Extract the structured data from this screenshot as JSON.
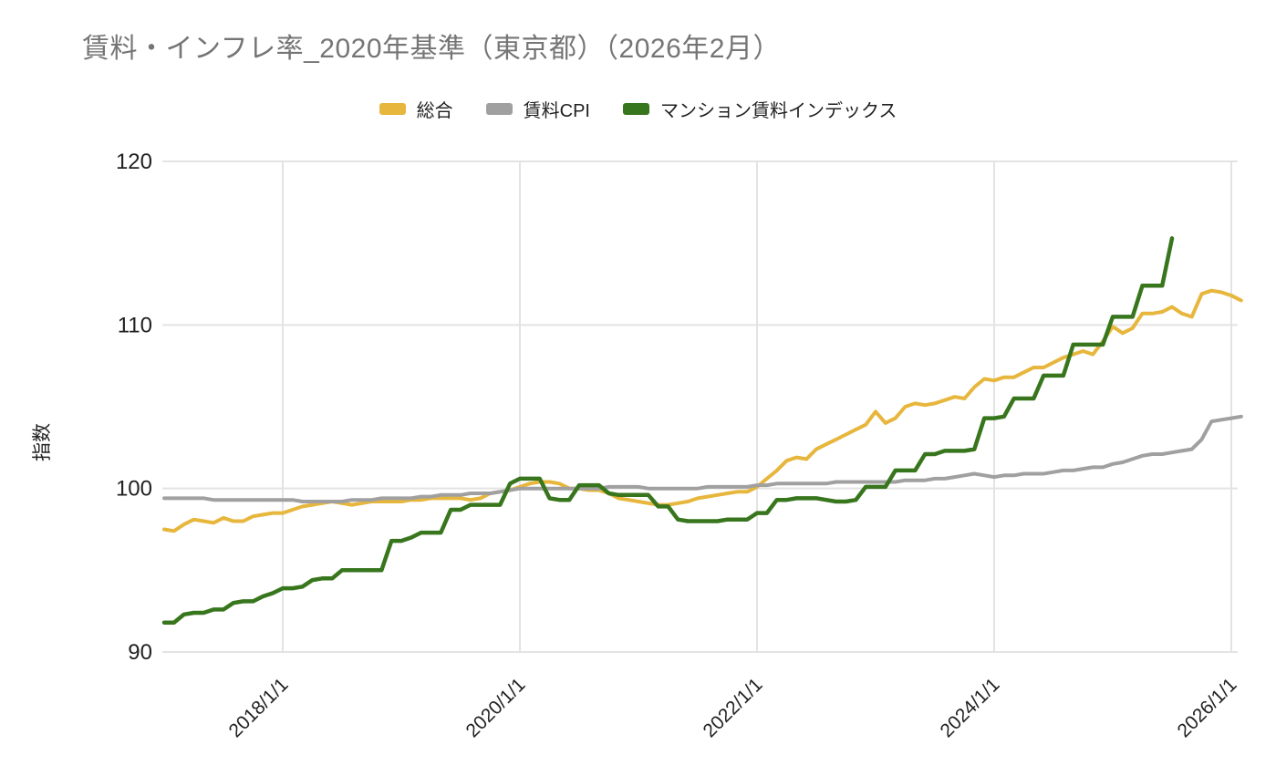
{
  "title": "賃料・インフレ率_2020年基準（東京都）（2026年2月）",
  "colors": {
    "series_sougou": "#E7B63C",
    "series_chinryo_cpi": "#A0A0A0",
    "series_mansion_index": "#38761D",
    "grid": "#E3E3E3",
    "title_text": "#757575",
    "axis_text": "#212121"
  },
  "chart_data": {
    "type": "line",
    "title": "賃料・インフレ率_2020年基準（東京都）（2026年2月）",
    "ylabel": "指数",
    "xlabel": "",
    "ylim": [
      90,
      120
    ],
    "y_ticks": [
      90,
      100,
      110,
      120
    ],
    "x_tick_labels": [
      "2018/1/1",
      "2020/1/1",
      "2022/1/1",
      "2024/1/1",
      "2026/1/1"
    ],
    "x_tick_indices": [
      12,
      36,
      60,
      84,
      108
    ],
    "grid": true,
    "legend_position": "top",
    "x": [
      "2017/1",
      "2017/2",
      "2017/3",
      "2017/4",
      "2017/5",
      "2017/6",
      "2017/7",
      "2017/8",
      "2017/9",
      "2017/10",
      "2017/11",
      "2017/12",
      "2018/1",
      "2018/2",
      "2018/3",
      "2018/4",
      "2018/5",
      "2018/6",
      "2018/7",
      "2018/8",
      "2018/9",
      "2018/10",
      "2018/11",
      "2018/12",
      "2019/1",
      "2019/2",
      "2019/3",
      "2019/4",
      "2019/5",
      "2019/6",
      "2019/7",
      "2019/8",
      "2019/9",
      "2019/10",
      "2019/11",
      "2019/12",
      "2020/1",
      "2020/2",
      "2020/3",
      "2020/4",
      "2020/5",
      "2020/6",
      "2020/7",
      "2020/8",
      "2020/9",
      "2020/10",
      "2020/11",
      "2020/12",
      "2021/1",
      "2021/2",
      "2021/3",
      "2021/4",
      "2021/5",
      "2021/6",
      "2021/7",
      "2021/8",
      "2021/9",
      "2021/10",
      "2021/11",
      "2021/12",
      "2022/1",
      "2022/2",
      "2022/3",
      "2022/4",
      "2022/5",
      "2022/6",
      "2022/7",
      "2022/8",
      "2022/9",
      "2022/10",
      "2022/11",
      "2022/12",
      "2023/1",
      "2023/2",
      "2023/3",
      "2023/4",
      "2023/5",
      "2023/6",
      "2023/7",
      "2023/8",
      "2023/9",
      "2023/10",
      "2023/11",
      "2023/12",
      "2024/1",
      "2024/2",
      "2024/3",
      "2024/4",
      "2024/5",
      "2024/6",
      "2024/7",
      "2024/8",
      "2024/9",
      "2024/10",
      "2024/11",
      "2024/12",
      "2025/1",
      "2025/2",
      "2025/3",
      "2025/4",
      "2025/5",
      "2025/6",
      "2025/7",
      "2025/8",
      "2025/9",
      "2025/10",
      "2025/11",
      "2025/12",
      "2026/1",
      "2026/2"
    ],
    "series": [
      {
        "name": "総合",
        "color": "#E7B63C",
        "values": [
          97.5,
          97.4,
          97.8,
          98.1,
          98.0,
          97.9,
          98.2,
          98.0,
          98.0,
          98.3,
          98.4,
          98.5,
          98.5,
          98.7,
          98.9,
          99.0,
          99.1,
          99.2,
          99.1,
          99.0,
          99.1,
          99.2,
          99.2,
          99.2,
          99.2,
          99.3,
          99.3,
          99.4,
          99.4,
          99.4,
          99.4,
          99.3,
          99.4,
          99.7,
          99.8,
          99.9,
          100.1,
          100.3,
          100.4,
          100.4,
          100.3,
          100.0,
          100.0,
          99.9,
          99.9,
          99.7,
          99.4,
          99.3,
          99.2,
          99.1,
          99.0,
          99.0,
          99.1,
          99.2,
          99.4,
          99.5,
          99.6,
          99.7,
          99.8,
          99.8,
          100.1,
          100.6,
          101.1,
          101.7,
          101.9,
          101.8,
          102.4,
          102.7,
          103.0,
          103.3,
          103.6,
          103.9,
          104.7,
          104.0,
          104.3,
          105.0,
          105.2,
          105.1,
          105.2,
          105.4,
          105.6,
          105.5,
          106.2,
          106.7,
          106.6,
          106.8,
          106.8,
          107.1,
          107.4,
          107.4,
          107.7,
          108.0,
          108.2,
          108.4,
          108.2,
          109.0,
          109.9,
          109.5,
          109.8,
          110.7,
          110.7,
          110.8,
          111.1,
          110.7,
          110.5,
          111.9,
          112.1,
          112.0,
          111.8,
          111.5
        ]
      },
      {
        "name": "賃料CPI",
        "color": "#A0A0A0",
        "values": [
          99.4,
          99.4,
          99.4,
          99.4,
          99.4,
          99.3,
          99.3,
          99.3,
          99.3,
          99.3,
          99.3,
          99.3,
          99.3,
          99.3,
          99.2,
          99.2,
          99.2,
          99.2,
          99.2,
          99.3,
          99.3,
          99.3,
          99.4,
          99.4,
          99.4,
          99.4,
          99.5,
          99.5,
          99.6,
          99.6,
          99.6,
          99.7,
          99.7,
          99.7,
          99.8,
          99.9,
          100.0,
          100.0,
          100.0,
          100.0,
          100.0,
          100.0,
          100.0,
          100.0,
          100.0,
          100.1,
          100.1,
          100.1,
          100.1,
          100.0,
          100.0,
          100.0,
          100.0,
          100.0,
          100.0,
          100.1,
          100.1,
          100.1,
          100.1,
          100.1,
          100.2,
          100.2,
          100.3,
          100.3,
          100.3,
          100.3,
          100.3,
          100.3,
          100.4,
          100.4,
          100.4,
          100.4,
          100.4,
          100.4,
          100.4,
          100.5,
          100.5,
          100.5,
          100.6,
          100.6,
          100.7,
          100.8,
          100.9,
          100.8,
          100.7,
          100.8,
          100.8,
          100.9,
          100.9,
          100.9,
          101.0,
          101.1,
          101.1,
          101.2,
          101.3,
          101.3,
          101.5,
          101.6,
          101.8,
          102.0,
          102.1,
          102.1,
          102.2,
          102.3,
          102.4,
          103.0,
          104.1,
          104.2,
          104.3,
          104.4
        ]
      },
      {
        "name": "マンション賃料インデックス",
        "color": "#38761D",
        "values": [
          91.8,
          91.8,
          92.3,
          92.4,
          92.4,
          92.6,
          92.6,
          93.0,
          93.1,
          93.1,
          93.4,
          93.6,
          93.9,
          93.9,
          94.0,
          94.4,
          94.5,
          94.5,
          95.0,
          95.0,
          95.0,
          95.0,
          95.0,
          96.8,
          96.8,
          97.0,
          97.3,
          97.3,
          97.3,
          98.7,
          98.7,
          99.0,
          99.0,
          99.0,
          99.0,
          100.3,
          100.6,
          100.6,
          100.6,
          99.4,
          99.3,
          99.3,
          100.2,
          100.2,
          100.2,
          99.7,
          99.6,
          99.6,
          99.6,
          99.6,
          98.9,
          98.9,
          98.1,
          98.0,
          98.0,
          98.0,
          98.0,
          98.1,
          98.1,
          98.1,
          98.5,
          98.5,
          99.3,
          99.3,
          99.4,
          99.4,
          99.4,
          99.3,
          99.2,
          99.2,
          99.3,
          100.1,
          100.1,
          100.1,
          101.1,
          101.1,
          101.1,
          102.1,
          102.1,
          102.3,
          102.3,
          102.3,
          102.4,
          104.3,
          104.3,
          104.4,
          105.5,
          105.5,
          105.5,
          106.9,
          106.9,
          106.9,
          108.8,
          108.8,
          108.8,
          108.8,
          110.5,
          110.5,
          110.5,
          112.4,
          112.4,
          112.4,
          115.3,
          null,
          null,
          null,
          null,
          null,
          null,
          null
        ]
      }
    ]
  }
}
